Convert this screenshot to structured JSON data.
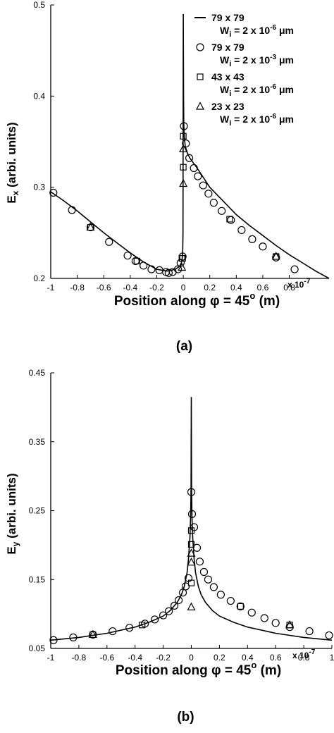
{
  "chart_data": [
    {
      "type": "line",
      "caption": "(a)",
      "xlabel": "Position along  φ = 45",
      "xlabel_deg": "o",
      "xlabel_unit": "(m)",
      "ylabel_main": "E",
      "ylabel_sub": "x",
      "ylabel_rest": " (arbi. units)",
      "x_multiplier_base": "x 10",
      "x_multiplier_exp": "-7",
      "xlim": [
        -1,
        1.1
      ],
      "ylim": [
        0.2,
        0.5
      ],
      "xticks": [
        "-1",
        "-0.8",
        "-0.6",
        "-0.4",
        "-0.2",
        "0",
        "0.2",
        "0.4",
        "0.6",
        "0.8"
      ],
      "yticks": [
        "0.2",
        "0.3",
        "0.4",
        "0.5"
      ],
      "legend": [
        {
          "marker": "line",
          "label": "79 x 79",
          "w": "W",
          "w_sub": "i",
          "w_eq": " = 2 x 10",
          "w_exp": "-6",
          "w_unit": " μm"
        },
        {
          "marker": "circle",
          "label": "79 x 79",
          "w": "W",
          "w_sub": "i",
          "w_eq": " = 2 x 10",
          "w_exp": "-3",
          "w_unit": " μm"
        },
        {
          "marker": "square",
          "label": "43 x 43",
          "w": "W",
          "w_sub": "i",
          "w_eq": " = 2 x 10",
          "w_exp": "-6",
          "w_unit": " μm"
        },
        {
          "marker": "triangle",
          "label": "23 x 23",
          "w": "W",
          "w_sub": "i",
          "w_eq": " = 2 x 10",
          "w_exp": "-6",
          "w_unit": " μm"
        }
      ],
      "series": [
        {
          "marker": "line",
          "x": [
            -1.0,
            -0.9,
            -0.8,
            -0.7,
            -0.6,
            -0.5,
            -0.4,
            -0.3,
            -0.25,
            -0.2,
            -0.16,
            -0.12,
            -0.09,
            -0.06,
            -0.04,
            -0.025,
            -0.015,
            -0.008,
            -0.004,
            -0.002,
            0.0,
            0.002,
            0.004,
            0.008,
            0.015,
            0.03,
            0.05,
            0.1,
            0.2,
            0.3,
            0.4,
            0.5,
            0.6,
            0.7,
            0.8,
            0.9,
            1.0,
            1.1
          ],
          "y": [
            0.295,
            0.285,
            0.274,
            0.262,
            0.25,
            0.239,
            0.228,
            0.218,
            0.214,
            0.21,
            0.209,
            0.208,
            0.209,
            0.21,
            0.212,
            0.214,
            0.217,
            0.222,
            0.23,
            0.25,
            0.49,
            0.4,
            0.37,
            0.355,
            0.345,
            0.338,
            0.332,
            0.322,
            0.3,
            0.285,
            0.27,
            0.258,
            0.247,
            0.236,
            0.226,
            0.217,
            0.208,
            0.2
          ]
        },
        {
          "marker": "circle",
          "x": [
            -0.98,
            -0.84,
            -0.7,
            -0.56,
            -0.42,
            -0.36,
            -0.3,
            -0.24,
            -0.18,
            -0.13,
            -0.11,
            -0.08,
            -0.04,
            -0.02,
            -0.005,
            0.005,
            0.02,
            0.045,
            0.08,
            0.11,
            0.15,
            0.19,
            0.23,
            0.29,
            0.36,
            0.44,
            0.52,
            0.6,
            0.7,
            0.84
          ],
          "y": [
            0.294,
            0.275,
            0.256,
            0.24,
            0.225,
            0.219,
            0.214,
            0.21,
            0.209,
            0.207,
            0.206,
            0.207,
            0.21,
            0.217,
            0.224,
            0.367,
            0.348,
            0.332,
            0.321,
            0.312,
            0.302,
            0.293,
            0.283,
            0.274,
            0.264,
            0.253,
            0.243,
            0.235,
            0.223,
            0.21
          ]
        },
        {
          "marker": "square",
          "x": [
            -0.7,
            -0.35,
            -0.01,
            -0.005,
            0.0,
            0.0,
            0.35,
            0.7
          ],
          "y": [
            0.256,
            0.219,
            0.222,
            0.222,
            0.356,
            0.322,
            0.265,
            0.224
          ]
        },
        {
          "marker": "triangle",
          "x": [
            -0.7,
            -0.01,
            0.0,
            0.0,
            0.7
          ],
          "y": [
            0.256,
            0.212,
            0.342,
            0.304,
            0.224
          ]
        }
      ]
    },
    {
      "type": "line",
      "caption": "(b)",
      "xlabel": "Position along  φ = 45",
      "xlabel_deg": "o",
      "xlabel_unit": "(m)",
      "ylabel_main": "E",
      "ylabel_sub": "y",
      "ylabel_rest": " (arbi. units)",
      "x_multiplier_base": "x 10",
      "x_multiplier_exp": "-7",
      "xlim": [
        -1,
        1
      ],
      "ylim": [
        0.05,
        0.45
      ],
      "xticks": [
        "-1",
        "-0.8",
        "-0.6",
        "-0.4",
        "-0.2",
        "0",
        "0.2",
        "0.4",
        "0.6",
        "0.8",
        "1"
      ],
      "yticks": [
        "0.05",
        "0.15",
        "0.25",
        "0.35",
        "0.45"
      ],
      "series": [
        {
          "marker": "line",
          "x": [
            -1.0,
            -0.8,
            -0.6,
            -0.4,
            -0.3,
            -0.2,
            -0.15,
            -0.1,
            -0.07,
            -0.05,
            -0.03,
            -0.02,
            -0.01,
            -0.005,
            -0.002,
            0.0,
            0.002,
            0.005,
            0.01,
            0.02,
            0.03,
            0.05,
            0.07,
            0.1,
            0.15,
            0.2,
            0.3,
            0.4,
            0.6,
            0.8,
            1.0
          ],
          "y": [
            0.062,
            0.066,
            0.072,
            0.081,
            0.088,
            0.097,
            0.105,
            0.117,
            0.128,
            0.14,
            0.16,
            0.18,
            0.21,
            0.24,
            0.28,
            0.415,
            0.28,
            0.24,
            0.21,
            0.18,
            0.16,
            0.14,
            0.128,
            0.117,
            0.105,
            0.097,
            0.088,
            0.081,
            0.072,
            0.066,
            0.062
          ]
        },
        {
          "marker": "circle",
          "x": [
            -0.98,
            -0.84,
            -0.7,
            -0.56,
            -0.44,
            -0.33,
            -0.26,
            -0.2,
            -0.16,
            -0.12,
            -0.09,
            -0.06,
            -0.04,
            -0.02,
            0.0,
            0.005,
            0.02,
            0.04,
            0.06,
            0.09,
            0.12,
            0.16,
            0.21,
            0.28,
            0.35,
            0.43,
            0.52,
            0.6,
            0.7,
            0.84,
            0.98
          ],
          "y": [
            0.062,
            0.066,
            0.07,
            0.075,
            0.08,
            0.086,
            0.092,
            0.098,
            0.104,
            0.112,
            0.12,
            0.131,
            0.14,
            0.152,
            0.277,
            0.245,
            0.226,
            0.196,
            0.176,
            0.161,
            0.15,
            0.139,
            0.128,
            0.119,
            0.111,
            0.102,
            0.094,
            0.087,
            0.081,
            0.075,
            0.069
          ]
        },
        {
          "marker": "square",
          "x": [
            -0.7,
            -0.35,
            0.0,
            0.0,
            0.0,
            0.35,
            0.7
          ],
          "y": [
            0.07,
            0.084,
            0.221,
            0.201,
            0.145,
            0.111,
            0.084
          ]
        },
        {
          "marker": "triangle",
          "x": [
            -0.7,
            0.0,
            0.0,
            0.0,
            0.7
          ],
          "y": [
            0.07,
            0.188,
            0.175,
            0.11,
            0.084
          ]
        }
      ]
    }
  ]
}
